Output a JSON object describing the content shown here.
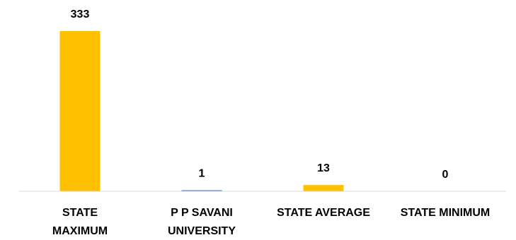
{
  "chart_data": {
    "type": "bar",
    "categories": [
      [
        "STATE",
        "MAXIMUM"
      ],
      [
        "P P SAVANI",
        "UNIVERSITY"
      ],
      [
        "STATE AVERAGE"
      ],
      [
        "STATE MINIMUM"
      ]
    ],
    "values": [
      333,
      1,
      13,
      0
    ],
    "value_labels": [
      "333",
      "1",
      "13",
      "0"
    ],
    "ylim": [
      0,
      333
    ],
    "grid": false,
    "legend": "none",
    "colors": {
      "default_bar": "#FFC000",
      "highlight_bar": "#4472C4",
      "axis": "#D9D9D9"
    },
    "highlight_index": 1
  }
}
